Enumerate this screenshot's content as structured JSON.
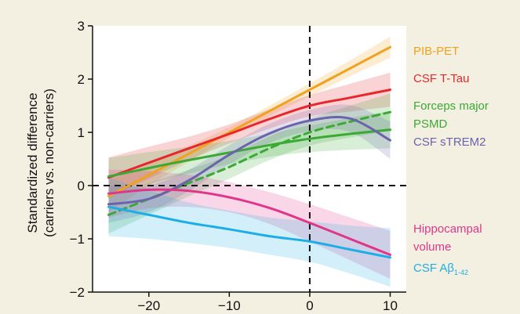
{
  "colors": {
    "frame_background": "#f3efe1",
    "plot_background": "#ffffff"
  },
  "chart_data": {
    "type": "line",
    "title": "",
    "xlabel": "",
    "ylabel_line1": "Standardized difference",
    "ylabel_line2": "(carriers vs. non-carriers)",
    "xlim": [
      -27,
      12
    ],
    "ylim": [
      -2,
      3
    ],
    "x_ticks": [
      -20,
      -10,
      0,
      10
    ],
    "x_tick_labels": [
      "−20",
      "−10",
      "0",
      "10"
    ],
    "y_ticks": [
      3,
      2,
      1,
      0,
      -1,
      -2
    ],
    "y_tick_labels": [
      "3",
      "2",
      "1",
      "0",
      "−1",
      "−2"
    ],
    "reference_lines": {
      "x": 0,
      "y": 0,
      "style": "dashed"
    },
    "grid": false,
    "legend_placement": "right",
    "x": [
      -25,
      -20,
      -15,
      -10,
      -5,
      0,
      5,
      10
    ],
    "series": [
      {
        "name": "PIB-PET",
        "color": "#f0a21e",
        "dashed": false,
        "values": [
          -0.2,
          0.2,
          0.6,
          1.0,
          1.4,
          1.8,
          2.2,
          2.6
        ],
        "band_halfwidth": [
          0.3,
          0.2,
          0.15,
          0.1,
          0.1,
          0.12,
          0.15,
          0.2
        ]
      },
      {
        "name": "CSF T-Tau",
        "color": "#e8262d",
        "dashed": false,
        "values": [
          0.15,
          0.43,
          0.7,
          0.97,
          1.25,
          1.5,
          1.65,
          1.8
        ],
        "band_halfwidth": [
          0.38,
          0.3,
          0.22,
          0.18,
          0.18,
          0.2,
          0.26,
          0.32
        ]
      },
      {
        "name": "Forceps major",
        "color": "#3aaa35",
        "dashed": false,
        "values": [
          0.17,
          0.33,
          0.48,
          0.62,
          0.76,
          0.88,
          0.97,
          1.05
        ],
        "band_halfwidth": [
          0.35,
          0.3,
          0.25,
          0.22,
          0.22,
          0.25,
          0.3,
          0.35
        ]
      },
      {
        "name": "PSMD",
        "color": "#3aaa35",
        "dashed": true,
        "values": [
          -0.55,
          -0.25,
          0.05,
          0.35,
          0.7,
          1.0,
          1.2,
          1.38
        ],
        "band_halfwidth": [
          0.35,
          0.3,
          0.25,
          0.22,
          0.22,
          0.25,
          0.3,
          0.35
        ]
      },
      {
        "name": "CSF sTREM2",
        "color": "#6c63ac",
        "dashed": false,
        "values": [
          -0.35,
          -0.25,
          0.1,
          0.58,
          0.98,
          1.22,
          1.26,
          0.85
        ],
        "band_halfwidth": [
          0.35,
          0.25,
          0.2,
          0.18,
          0.18,
          0.2,
          0.25,
          0.35
        ]
      },
      {
        "name": "Hippocampal volume",
        "color": "#e0368a",
        "dashed": false,
        "values": [
          -0.15,
          -0.08,
          -0.1,
          -0.22,
          -0.42,
          -0.7,
          -1.0,
          -1.3
        ],
        "band_halfwidth": [
          0.45,
          0.35,
          0.3,
          0.28,
          0.3,
          0.35,
          0.4,
          0.45
        ]
      },
      {
        "name": "CSF Aβ1-42",
        "color": "#1eaee6",
        "dashed": false,
        "values": [
          -0.4,
          -0.55,
          -0.7,
          -0.82,
          -0.95,
          -1.05,
          -1.2,
          -1.35
        ],
        "band_halfwidth": [
          0.55,
          0.45,
          0.38,
          0.35,
          0.35,
          0.38,
          0.45,
          0.55
        ]
      }
    ],
    "legend": [
      {
        "label": "PIB-PET",
        "color": "#f0a21e"
      },
      {
        "label": "CSF T-Tau",
        "color": "#e8262d"
      },
      {
        "label": "Forceps major",
        "color": "#3aaa35"
      },
      {
        "label": "PSMD",
        "color": "#3aaa35"
      },
      {
        "label": "CSF sTREM2",
        "color": "#6c63ac"
      },
      {
        "label": "Hippocampal",
        "color": "#e0368a"
      },
      {
        "label": "volume",
        "color": "#e0368a"
      },
      {
        "label": "CSF Aβ",
        "sub": "1-42",
        "color": "#1eaee6"
      }
    ]
  }
}
